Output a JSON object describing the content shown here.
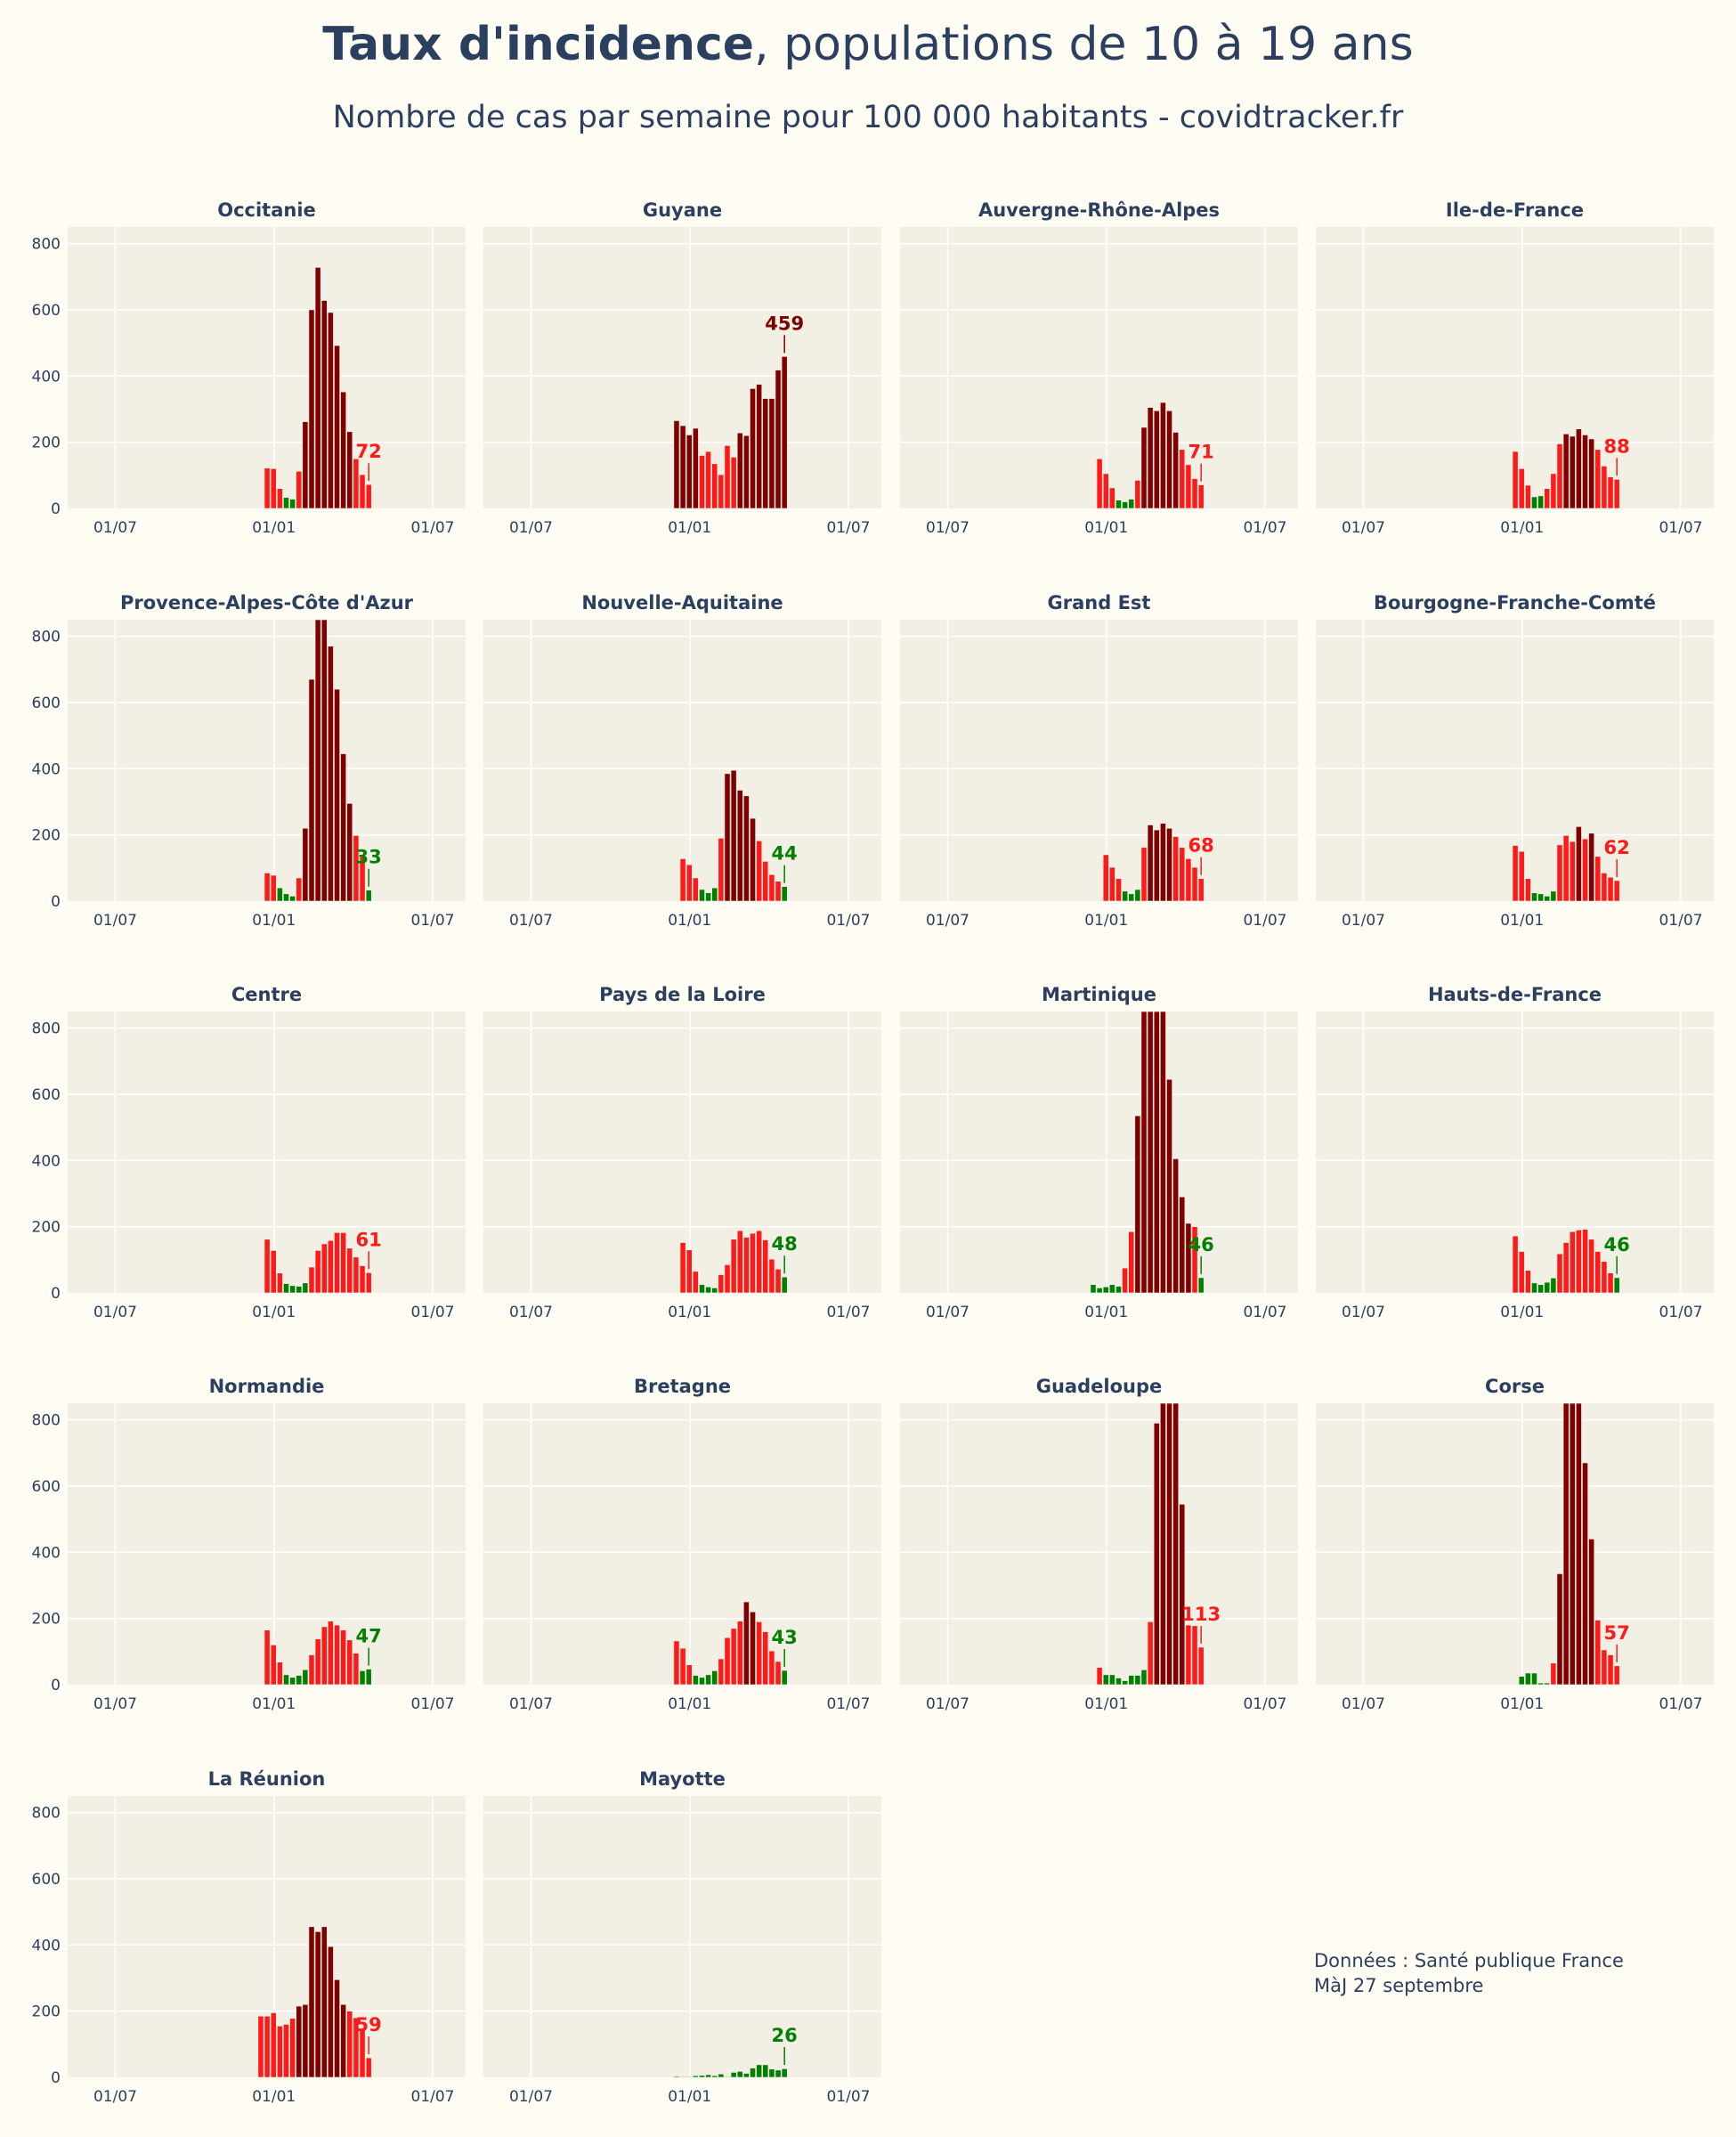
{
  "title_bold": "Taux d'incidence",
  "title_rest": ", populations de 10 à 19 ans",
  "subtitle": "Nombre de cas par semaine pour 100 000 habitants - covidtracker.fr",
  "source_line1": "Données : Santé publique France",
  "source_line2": "MàJ 27 septembre",
  "colors": {
    "background": "#fffcf4",
    "panel": "#f2efe4",
    "text": "#2b3f5f",
    "green": "#008000",
    "red": "#ff1a1a",
    "darkred": "#800000"
  },
  "chart_data": {
    "type": "bar",
    "layout": "small-multiples 4x5",
    "x_tick_labels": [
      "01/07",
      "01/01",
      "01/07"
    ],
    "y_ticks": [
      0,
      200,
      400,
      600,
      800
    ],
    "ylim": [
      0,
      850
    ],
    "grid": true,
    "color_rule": "green < 50, red 50-200, dark red > 200",
    "panels": [
      {
        "name": "Occitanie",
        "label": "72",
        "values": [
          122,
          120,
          60,
          33,
          28,
          112,
          262,
          600,
          728,
          628,
          592,
          492,
          352,
          232,
          150,
          102,
          72
        ]
      },
      {
        "name": "Guyane",
        "label": "459",
        "values": [
          265,
          250,
          222,
          242,
          160,
          172,
          135,
          102,
          190,
          155,
          228,
          220,
          362,
          375,
          332,
          332,
          418,
          459
        ]
      },
      {
        "name": "Auvergne-Rhône-Alpes",
        "label": "71",
        "values": [
          150,
          105,
          62,
          25,
          20,
          28,
          85,
          245,
          305,
          295,
          320,
          295,
          230,
          178,
          132,
          90,
          71
        ]
      },
      {
        "name": "Ile-de-France",
        "label": "88",
        "values": [
          172,
          120,
          70,
          35,
          38,
          60,
          105,
          195,
          225,
          218,
          240,
          222,
          210,
          178,
          128,
          95,
          88
        ]
      },
      {
        "name": "Provence-Alpes-Côte d'Azur",
        "label": "33",
        "values": [
          85,
          78,
          40,
          22,
          15,
          70,
          220,
          670,
          850,
          855,
          770,
          640,
          445,
          295,
          198,
          133,
          33
        ]
      },
      {
        "name": "Nouvelle-Aquitaine",
        "label": "44",
        "values": [
          128,
          110,
          70,
          35,
          25,
          40,
          190,
          385,
          395,
          335,
          318,
          250,
          182,
          120,
          80,
          60,
          44
        ]
      },
      {
        "name": "Grand Est",
        "label": "68",
        "values": [
          140,
          102,
          68,
          30,
          22,
          35,
          162,
          230,
          215,
          235,
          220,
          195,
          162,
          128,
          102,
          68
        ]
      },
      {
        "name": "Bourgogne-Franche-Comté",
        "label": "62",
        "values": [
          168,
          150,
          68,
          25,
          22,
          15,
          30,
          170,
          198,
          180,
          225,
          188,
          205,
          135,
          85,
          72,
          62
        ]
      },
      {
        "name": "Centre",
        "label": "61",
        "values": [
          162,
          128,
          60,
          28,
          22,
          20,
          30,
          78,
          128,
          148,
          158,
          182,
          182,
          135,
          108,
          82,
          61
        ]
      },
      {
        "name": "Pays de la Loire",
        "label": "48",
        "values": [
          152,
          130,
          65,
          25,
          18,
          15,
          55,
          85,
          162,
          188,
          168,
          180,
          188,
          160,
          102,
          72,
          48
        ]
      },
      {
        "name": "Martinique",
        "label": "46",
        "values": [
          25,
          15,
          18,
          25,
          20,
          75,
          185,
          535,
          850,
          855,
          850,
          850,
          645,
          405,
          290,
          210,
          200,
          46
        ]
      },
      {
        "name": "Hauts-de-France",
        "label": "46",
        "values": [
          172,
          125,
          68,
          30,
          25,
          32,
          45,
          118,
          152,
          185,
          190,
          192,
          162,
          125,
          95,
          60,
          46
        ]
      },
      {
        "name": "Normandie",
        "label": "47",
        "values": [
          165,
          120,
          68,
          30,
          22,
          28,
          45,
          90,
          138,
          175,
          192,
          180,
          165,
          135,
          95,
          42,
          47
        ]
      },
      {
        "name": "Bretagne",
        "label": "43",
        "values": [
          132,
          110,
          60,
          28,
          22,
          30,
          42,
          78,
          142,
          170,
          192,
          250,
          220,
          190,
          160,
          102,
          70,
          43
        ]
      },
      {
        "name": "Guadeloupe",
        "label": "113",
        "values": [
          52,
          30,
          30,
          20,
          12,
          28,
          28,
          45,
          190,
          790,
          850,
          855,
          850,
          545,
          180,
          178,
          113
        ]
      },
      {
        "name": "Corse",
        "label": "57",
        "values": [
          25,
          35,
          35,
          5,
          5,
          65,
          335,
          850,
          850,
          850,
          670,
          440,
          195,
          105,
          90,
          57
        ]
      },
      {
        "name": "La Réunion",
        "label": "59",
        "values": [
          185,
          185,
          195,
          155,
          160,
          178,
          215,
          220,
          455,
          440,
          455,
          395,
          295,
          220,
          200,
          180,
          148,
          59
        ]
      },
      {
        "name": "Mayotte",
        "label": "26",
        "values": [
          3,
          2,
          2,
          5,
          6,
          8,
          5,
          10,
          2,
          15,
          18,
          12,
          28,
          38,
          38,
          25,
          22,
          26
        ]
      }
    ]
  }
}
